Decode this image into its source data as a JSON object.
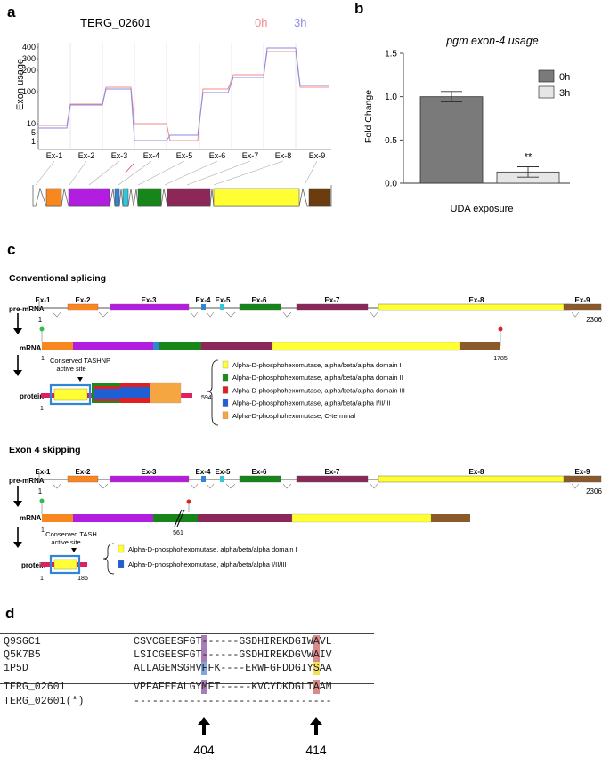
{
  "panels": {
    "a": "a",
    "b": "b",
    "c": "c",
    "d": "d"
  },
  "panel_a": {
    "title": "TERG_02601",
    "legend": [
      {
        "label": "0h",
        "color": "#f08a8a"
      },
      {
        "label": "3h",
        "color": "#8a8ae0"
      }
    ],
    "ylabel": "Exon usage",
    "yticks": [
      "400",
      "300",
      "200",
      "100",
      "10",
      "5",
      "1"
    ],
    "exons": [
      "Ex-1",
      "Ex-2",
      "Ex-3",
      "Ex-4",
      "Ex-5",
      "Ex-6",
      "Ex-7",
      "Ex-8",
      "Ex-9"
    ]
  },
  "chart_data": {
    "type": "bar",
    "title": "pgm exon-4 usage",
    "xlabel": "UDA exposure",
    "ylabel": "Fold Change",
    "ylim": [
      0,
      1.5
    ],
    "yticks": [
      "0.0",
      "0.5",
      "1.0",
      "1.5"
    ],
    "series": [
      {
        "name": "0h",
        "values": [
          1.0
        ],
        "error": 0.06,
        "color": "#7a7a7a"
      },
      {
        "name": "3h",
        "values": [
          0.13
        ],
        "error": 0.06,
        "color": "#e6e6e6"
      }
    ],
    "annotation": "**"
  },
  "panel_c": {
    "conventional_title": "Conventional splicing",
    "skipping_title": "Exon 4 skipping",
    "exons": [
      "Ex-1",
      "Ex-2",
      "Ex-3",
      "Ex-4",
      "Ex-5",
      "Ex-6",
      "Ex-7",
      "Ex-8",
      "Ex-9"
    ],
    "row_labels": {
      "premrna": "pre-mRNA",
      "mrna": "mRNA",
      "protein": "protein"
    },
    "premrna_end": "2306",
    "premrna_start": "1",
    "conv_mrna_start": "1",
    "conv_mrna_end": "1785",
    "conv_protein_start": "1",
    "conv_protein_end": "594",
    "conv_site_line1": "Conserved TASHNP",
    "conv_site_line2": "active site",
    "skip_mrna_start": "1",
    "skip_mrna_stop": "561",
    "skip_protein_start": "1",
    "skip_protein_end": "186",
    "skip_site_line1": "Conserved TASH",
    "skip_site_line2": "active site",
    "conv_legend": [
      {
        "label": "Alpha-D-phosphohexomutase, alpha/beta/alpha domain I",
        "color": "#ffff33"
      },
      {
        "label": "Alpha-D-phosphohexomutase, alpha/beta/alpha domain II",
        "color": "#1a8a1a"
      },
      {
        "label": "Alpha-D-phosphohexomutase, alpha/beta/alpha domain III",
        "color": "#e02020"
      },
      {
        "label": "Alpha-D-phosphohexomutase, alpha/beta/alpha I/II/III",
        "color": "#1f5fd6"
      },
      {
        "label": "Alpha-D-phosphohexomutase, C-terminal",
        "color": "#f5a640"
      }
    ],
    "skip_legend": [
      {
        "label": "Alpha-D-phosphohexomutase, alpha/beta/alpha domain I",
        "color": "#ffff33"
      },
      {
        "label": "Alpha-D-phosphohexomutase, alpha/beta/alpha I/II/III",
        "color": "#1f5fd6"
      }
    ]
  },
  "panel_d": {
    "names": [
      "Q9SGC1",
      "Q5K7B5",
      "1P5D",
      "TERG_02601",
      "TERG_02601(*)"
    ],
    "seqs": [
      "CSVCGEESFGT------GSDHIREKDGIWAVL",
      "LSICGEESFGT------GSDHIREKDGVWAIV",
      "ALLAGEMSGHVFFK----ERWFGFDDGIYSAA",
      "VPFAFEEALGYMFT-----KVCYDKDGLTAAM",
      "--------------------------------"
    ],
    "positions": [
      "404",
      "414"
    ]
  }
}
